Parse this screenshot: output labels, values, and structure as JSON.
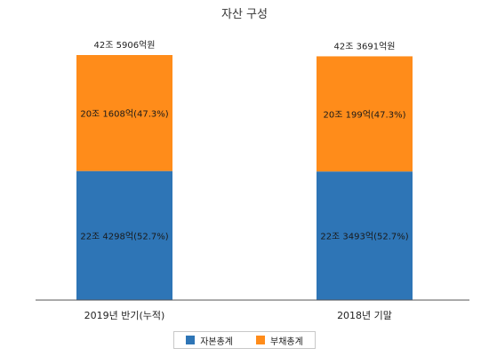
{
  "chart_data": {
    "type": "bar",
    "stacked": true,
    "title": "자산 구성",
    "categories": [
      "2019년 반기(누적)",
      "2018년 기말"
    ],
    "totals": [
      "42조 5906억원",
      "42조 3691억원"
    ],
    "total_values_억원": [
      425906,
      423691
    ],
    "series": [
      {
        "name": "자본총계",
        "color": "#2e75b6",
        "values": [
          224298,
          223493
        ],
        "labels": [
          "22조 4298억(52.7%)",
          "22조 3493억(52.7%)"
        ]
      },
      {
        "name": "부채총계",
        "color": "#ff8c1a",
        "values": [
          201608,
          200199
        ],
        "labels": [
          "20조 1608억(47.3%)",
          "20조 199억(47.3%)"
        ]
      }
    ],
    "legend_position": "bottom",
    "grid": false
  }
}
